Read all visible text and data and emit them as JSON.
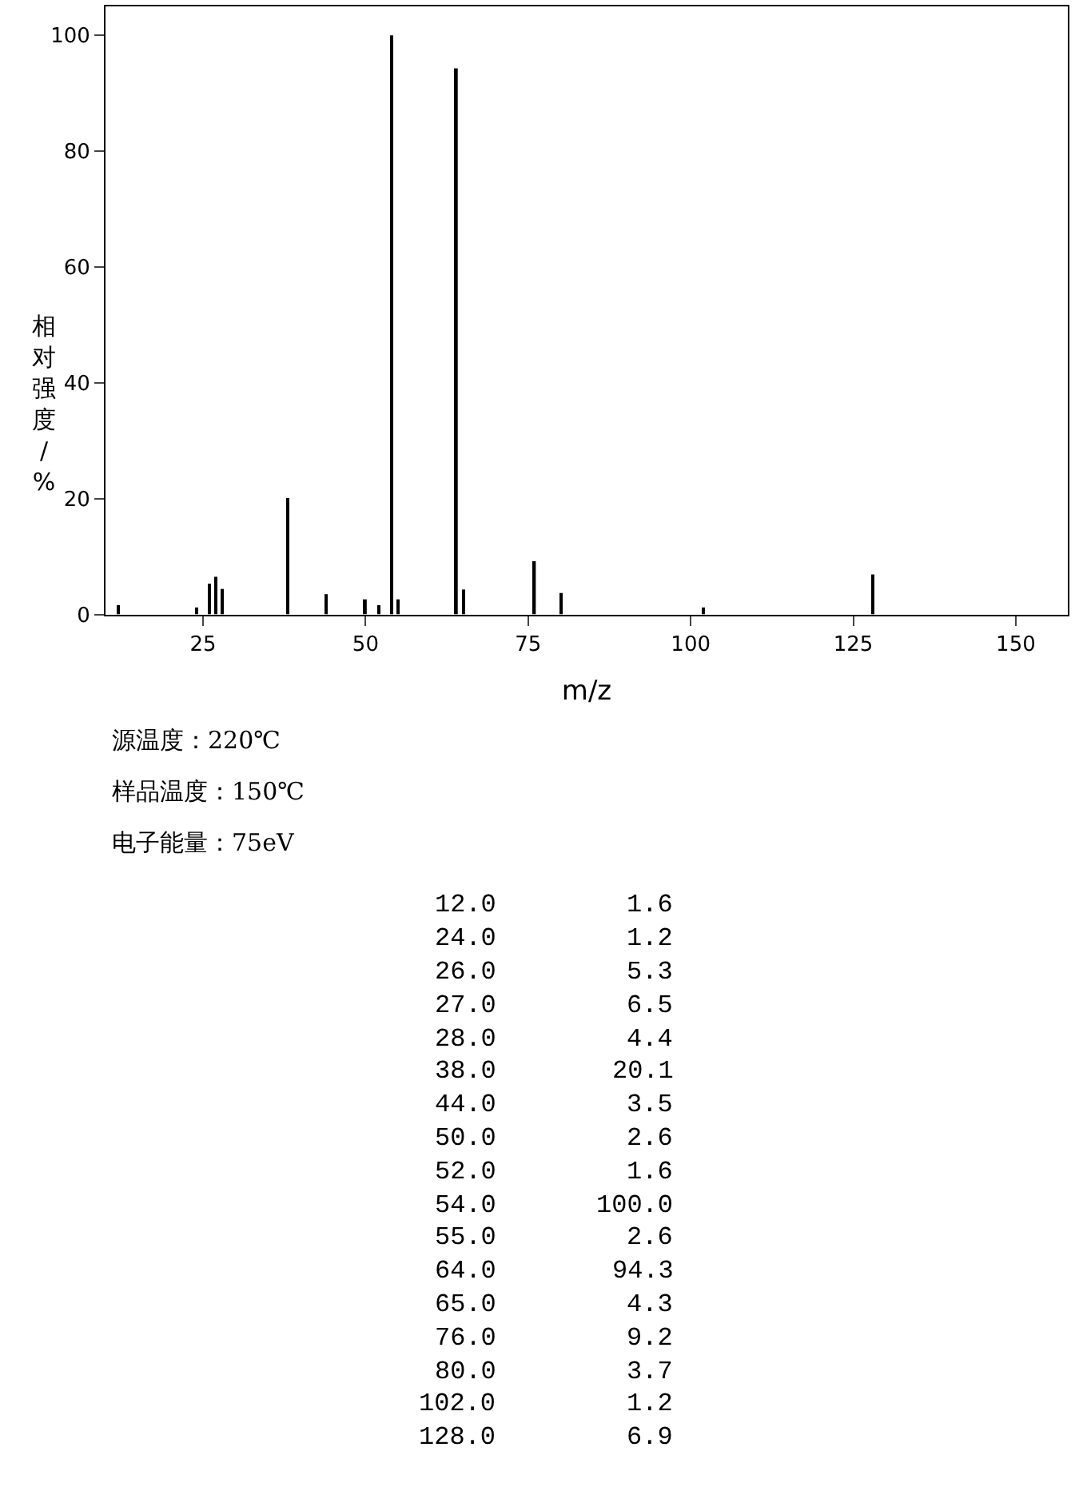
{
  "chart_data": [
    {
      "type": "bar",
      "xlabel": "m/z",
      "ylabel": "相对强度/%",
      "x": [
        12.0,
        24.0,
        26.0,
        27.0,
        28.0,
        38.0,
        44.0,
        50.0,
        52.0,
        54.0,
        55.0,
        64.0,
        65.0,
        76.0,
        80.0,
        102.0,
        128.0
      ],
      "values": [
        1.6,
        1.2,
        5.3,
        6.5,
        4.4,
        20.1,
        3.5,
        2.6,
        1.6,
        100.0,
        2.6,
        94.3,
        4.3,
        9.2,
        3.7,
        1.2,
        6.9
      ],
      "color": "#000000",
      "xlim": [
        10,
        158
      ],
      "ylim": [
        0,
        105
      ],
      "xticks": [
        25,
        50,
        75,
        100,
        125,
        150
      ],
      "yticks": [
        0,
        20,
        40,
        60,
        80,
        100
      ],
      "legend": false,
      "annotations": [
        "源温度：220℃",
        "样品温度：150℃",
        "电子能量：75eV"
      ]
    },
    {
      "type": "other",
      "categories": [
        "12.0",
        "24.0",
        "26.0",
        "27.0",
        "28.0",
        "38.0",
        "44.0",
        "50.0",
        "52.0",
        "54.0",
        "55.0",
        "64.0",
        "65.0",
        "76.0",
        "80.0",
        "102.0",
        "128.0"
      ],
      "values": [
        1.6,
        1.2,
        5.3,
        6.5,
        4.4,
        20.1,
        3.5,
        2.6,
        1.6,
        100.0,
        2.6,
        94.3,
        4.3,
        9.2,
        3.7,
        1.2,
        6.9
      ],
      "value_labels": [
        "1.6",
        "1.2",
        "5.3",
        "6.5",
        "4.4",
        "20.1",
        "3.5",
        "2.6",
        "1.6",
        "100.0",
        "2.6",
        "94.3",
        "4.3",
        "9.2",
        "3.7",
        "1.2",
        "6.9"
      ]
    }
  ]
}
